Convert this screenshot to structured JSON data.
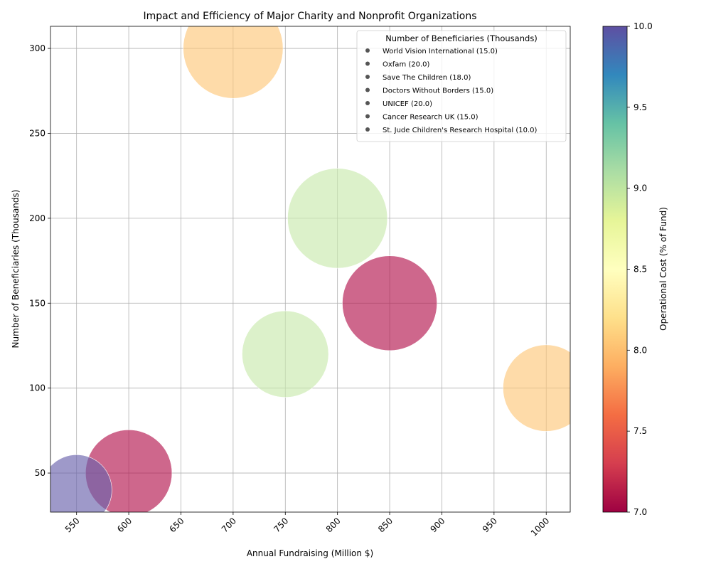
{
  "chart_data": {
    "type": "scatter",
    "title": "Impact and Efficiency of Major Charity and Nonprofit Organizations",
    "xlabel": "Annual Fundraising (Million $)",
    "ylabel": "Number of Beneficiaries (Thousands)",
    "xlim": [
      525,
      1023
    ],
    "ylim": [
      27,
      313
    ],
    "xticks": [
      550,
      600,
      650,
      700,
      750,
      800,
      850,
      900,
      950,
      1000
    ],
    "yticks": [
      50,
      100,
      150,
      200,
      250,
      300
    ],
    "grid": true,
    "legend_title": "Number of Beneficiaries (Thousands)",
    "legend_position": "top-right",
    "colorbar": {
      "label": "Operational Cost (% of Fund)",
      "min": 7.0,
      "max": 10.0,
      "ticks": [
        "7.0",
        "7.5",
        "8.0",
        "8.5",
        "9.0",
        "9.5",
        "10.0"
      ]
    },
    "points": [
      {
        "name": "World Vision International",
        "legend_value": "15.0",
        "x": 1000,
        "y": 100,
        "cost": 8.0,
        "size": 15.0,
        "color": "#fdc77b"
      },
      {
        "name": "Oxfam",
        "legend_value": "20.0",
        "x": 700,
        "y": 300,
        "cost": 8.0,
        "size": 20.0,
        "color": "#fdc77b"
      },
      {
        "name": "Save The Children",
        "legend_value": "18.0",
        "x": 850,
        "y": 150,
        "cost": 7.0,
        "size": 18.0,
        "color": "#b3164f"
      },
      {
        "name": "Doctors Without Borders",
        "legend_value": "15.0",
        "x": 750,
        "y": 120,
        "cost": 9.0,
        "size": 15.0,
        "color": "#cae9ad"
      },
      {
        "name": "UNICEF",
        "legend_value": "20.0",
        "x": 800,
        "y": 200,
        "cost": 9.0,
        "size": 20.0,
        "color": "#cae9ad"
      },
      {
        "name": "Cancer Research UK",
        "legend_value": "15.0",
        "x": 600,
        "y": 50,
        "cost": 7.0,
        "size": 15.0,
        "color": "#b3164f"
      },
      {
        "name": "St. Jude Children's Research Hospital",
        "legend_value": "10.0",
        "x": 550,
        "y": 40,
        "cost": 10.0,
        "size": 10.0,
        "color": "#6a62ac"
      }
    ]
  }
}
